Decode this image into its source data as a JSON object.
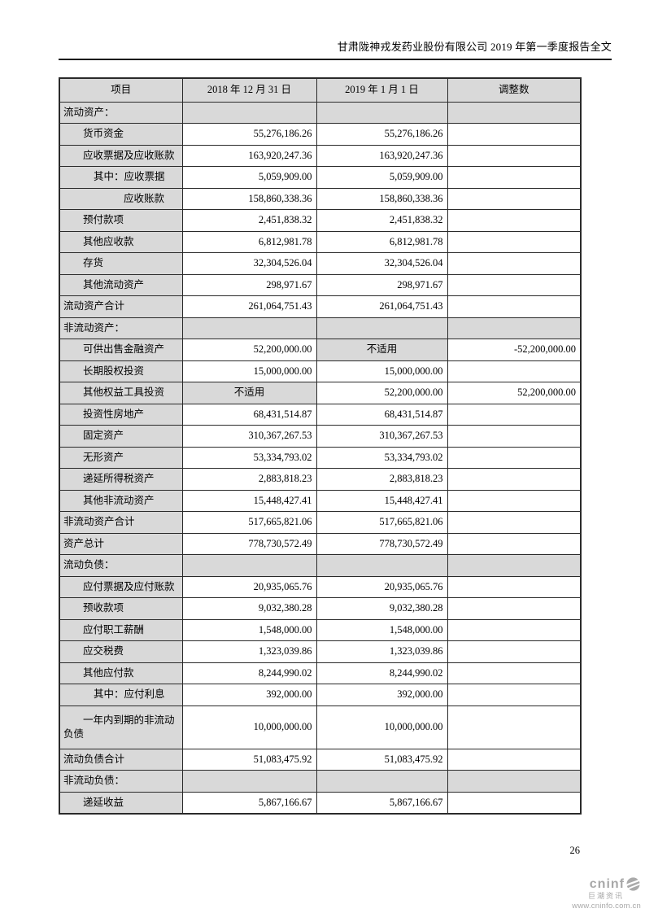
{
  "page": {
    "title": "甘肃陇神戎发药业股份有限公司 2019 年第一季度报告全文",
    "page_number": "26"
  },
  "logo": {
    "brand": "cninf",
    "brand_cn": "巨潮资讯",
    "url": "www.cninfo.com.cn",
    "gray": "#a8a8a8",
    "icon": "swirl-globe-icon"
  },
  "colors": {
    "cell_shading": "#d9d9d9",
    "border": "#2a2a2a"
  },
  "table": {
    "columns": [
      "项目",
      "2018 年 12 月 31 日",
      "2019 年 1 月 1 日",
      "调整数"
    ],
    "rows": [
      {
        "label": "流动资产：",
        "section": true,
        "indent": 0,
        "v1": "",
        "v2": "",
        "adj": ""
      },
      {
        "label": "货币资金",
        "indent": 1,
        "v1": "55,276,186.26",
        "v2": "55,276,186.26",
        "adj": ""
      },
      {
        "label": "应收票据及应收账款",
        "indent": 1,
        "v1": "163,920,247.36",
        "v2": "163,920,247.36",
        "adj": ""
      },
      {
        "label": "其中：应收票据",
        "indent": 2,
        "v1": "5,059,909.00",
        "v2": "5,059,909.00",
        "adj": ""
      },
      {
        "label": "应收账款",
        "indent": 3,
        "v1": "158,860,338.36",
        "v2": "158,860,338.36",
        "adj": ""
      },
      {
        "label": "预付款项",
        "indent": 1,
        "v1": "2,451,838.32",
        "v2": "2,451,838.32",
        "adj": ""
      },
      {
        "label": "其他应收款",
        "indent": 1,
        "v1": "6,812,981.78",
        "v2": "6,812,981.78",
        "adj": ""
      },
      {
        "label": "存货",
        "indent": 1,
        "v1": "32,304,526.04",
        "v2": "32,304,526.04",
        "adj": ""
      },
      {
        "label": "其他流动资产",
        "indent": 1,
        "v1": "298,971.67",
        "v2": "298,971.67",
        "adj": ""
      },
      {
        "label": "流动资产合计",
        "indent": 0,
        "v1": "261,064,751.43",
        "v2": "261,064,751.43",
        "adj": ""
      },
      {
        "label": "非流动资产：",
        "section": true,
        "indent": 0,
        "v1": "",
        "v2": "",
        "adj": ""
      },
      {
        "label": "可供出售金融资产",
        "indent": 1,
        "v1": "52,200,000.00",
        "v2": "不适用",
        "v2_na": true,
        "adj": "-52,200,000.00"
      },
      {
        "label": "长期股权投资",
        "indent": 1,
        "v1": "15,000,000.00",
        "v2": "15,000,000.00",
        "adj": ""
      },
      {
        "label": "其他权益工具投资",
        "indent": 1,
        "v1": "不适用",
        "v1_na": true,
        "v2": "52,200,000.00",
        "adj": "52,200,000.00"
      },
      {
        "label": "投资性房地产",
        "indent": 1,
        "v1": "68,431,514.87",
        "v2": "68,431,514.87",
        "adj": ""
      },
      {
        "label": "固定资产",
        "indent": 1,
        "v1": "310,367,267.53",
        "v2": "310,367,267.53",
        "adj": ""
      },
      {
        "label": "无形资产",
        "indent": 1,
        "v1": "53,334,793.02",
        "v2": "53,334,793.02",
        "adj": ""
      },
      {
        "label": "递延所得税资产",
        "indent": 1,
        "v1": "2,883,818.23",
        "v2": "2,883,818.23",
        "adj": ""
      },
      {
        "label": "其他非流动资产",
        "indent": 1,
        "v1": "15,448,427.41",
        "v2": "15,448,427.41",
        "adj": ""
      },
      {
        "label": "非流动资产合计",
        "indent": 0,
        "v1": "517,665,821.06",
        "v2": "517,665,821.06",
        "adj": ""
      },
      {
        "label": "资产总计",
        "indent": 0,
        "v1": "778,730,572.49",
        "v2": "778,730,572.49",
        "adj": ""
      },
      {
        "label": "流动负债：",
        "section": true,
        "indent": 0,
        "v1": "",
        "v2": "",
        "adj": ""
      },
      {
        "label": "应付票据及应付账款",
        "indent": 1,
        "v1": "20,935,065.76",
        "v2": "20,935,065.76",
        "adj": ""
      },
      {
        "label": "预收款项",
        "indent": 1,
        "v1": "9,032,380.28",
        "v2": "9,032,380.28",
        "adj": ""
      },
      {
        "label": "应付职工薪酬",
        "indent": 1,
        "v1": "1,548,000.00",
        "v2": "1,548,000.00",
        "adj": ""
      },
      {
        "label": "应交税费",
        "indent": 1,
        "v1": "1,323,039.86",
        "v2": "1,323,039.86",
        "adj": ""
      },
      {
        "label": "其他应付款",
        "indent": 1,
        "v1": "8,244,990.02",
        "v2": "8,244,990.02",
        "adj": ""
      },
      {
        "label": "其中：应付利息",
        "indent": 2,
        "v1": "392,000.00",
        "v2": "392,000.00",
        "adj": ""
      },
      {
        "label": "一年内到期的非流动负债",
        "indent": 1,
        "tall": true,
        "v1": "10,000,000.00",
        "v2": "10,000,000.00",
        "adj": ""
      },
      {
        "label": "流动负债合计",
        "indent": 0,
        "v1": "51,083,475.92",
        "v2": "51,083,475.92",
        "adj": ""
      },
      {
        "label": "非流动负债：",
        "section": true,
        "indent": 0,
        "v1": "",
        "v2": "",
        "adj": ""
      },
      {
        "label": "递延收益",
        "indent": 1,
        "v1": "5,867,166.67",
        "v2": "5,867,166.67",
        "adj": ""
      }
    ]
  }
}
